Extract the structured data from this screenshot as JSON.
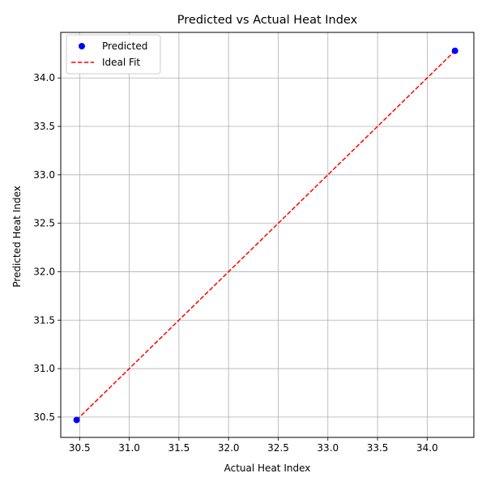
{
  "chart_data": {
    "type": "scatter",
    "title": "Predicted vs Actual Heat Index",
    "xlabel": "Actual Heat Index",
    "ylabel": "Predicted Heat Index",
    "xlim": [
      30.31,
      34.47
    ],
    "ylim": [
      30.29,
      34.47
    ],
    "xticks": [
      "30.5",
      "31.0",
      "31.5",
      "32.0",
      "32.5",
      "33.0",
      "33.5",
      "34.0"
    ],
    "yticks": [
      "30.5",
      "31.0",
      "31.5",
      "32.0",
      "32.5",
      "33.0",
      "33.5",
      "34.0"
    ],
    "grid": true,
    "legend_position": "upper-left",
    "series": [
      {
        "name": "Predicted",
        "kind": "scatter",
        "color": "#0000ff",
        "points": [
          [
            30.47,
            30.47
          ],
          [
            34.28,
            34.28
          ]
        ]
      },
      {
        "name": "Ideal Fit",
        "kind": "line",
        "style": "dashed",
        "color": "#ff0000",
        "points": [
          [
            30.47,
            30.47
          ],
          [
            34.28,
            34.28
          ]
        ]
      }
    ]
  }
}
